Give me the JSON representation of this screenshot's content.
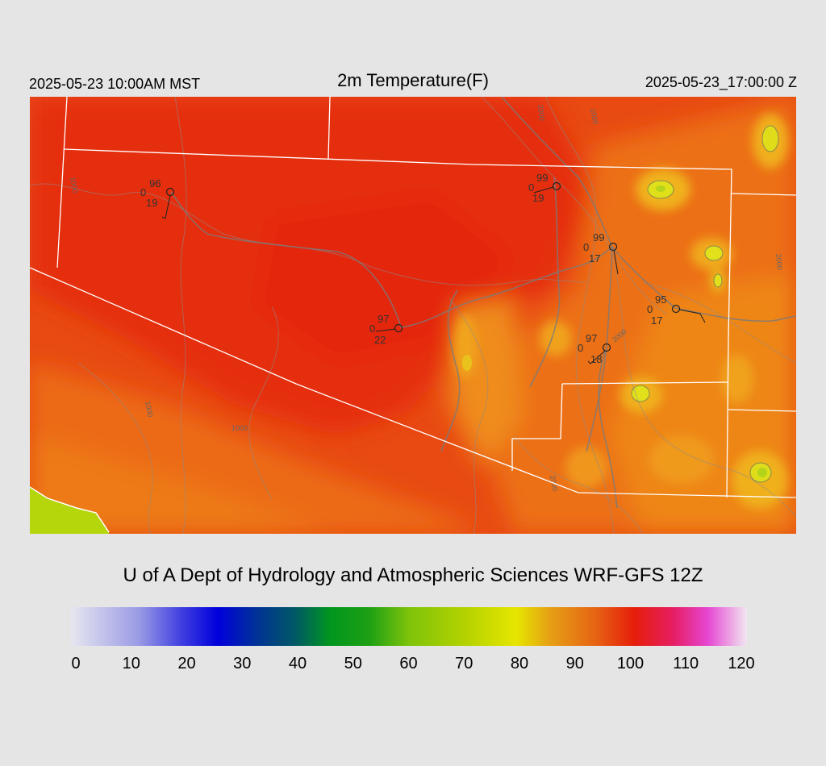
{
  "header": {
    "local_time": "2025-05-23 10:00AM MST",
    "title": "2m Temperature(F)",
    "utc_time": "2025-05-23_17:00:00 Z"
  },
  "credit": "U of A Dept of Hydrology and Atmospheric Sciences WRF-GFS 12Z",
  "colorbar": {
    "min": 0,
    "max": 120,
    "ticks": [
      "0",
      "10",
      "20",
      "30",
      "40",
      "50",
      "60",
      "70",
      "80",
      "90",
      "100",
      "110",
      "120"
    ],
    "stops": [
      {
        "value": 0,
        "color": "#e6e6f0"
      },
      {
        "value": 12,
        "color": "#9b9be6"
      },
      {
        "value": 20,
        "color": "#3b3be0"
      },
      {
        "value": 26,
        "color": "#0000dc"
      },
      {
        "value": 33,
        "color": "#003296"
      },
      {
        "value": 40,
        "color": "#005a64"
      },
      {
        "value": 46,
        "color": "#00961e"
      },
      {
        "value": 53,
        "color": "#1ea014"
      },
      {
        "value": 60,
        "color": "#7ec30a"
      },
      {
        "value": 70,
        "color": "#b4d200"
      },
      {
        "value": 79,
        "color": "#e6e600"
      },
      {
        "value": 85,
        "color": "#e6a014"
      },
      {
        "value": 93,
        "color": "#e66414"
      },
      {
        "value": 100,
        "color": "#e61e0a"
      },
      {
        "value": 107,
        "color": "#e61e64"
      },
      {
        "value": 113,
        "color": "#e646d2"
      },
      {
        "value": 120,
        "color": "#f0e6f0"
      }
    ]
  },
  "contour_labels": [
    "1000",
    "2000",
    "1000",
    "2000",
    "1000",
    "2000",
    "2000",
    "1000"
  ],
  "stations": [
    {
      "temp": "96",
      "wind": "0",
      "dew": "19"
    },
    {
      "temp": "99",
      "wind": "0",
      "dew": "19"
    },
    {
      "temp": "99",
      "wind": "0",
      "dew": "17"
    },
    {
      "temp": "95",
      "wind": "0",
      "dew": "17"
    },
    {
      "temp": "97",
      "wind": "0",
      "dew": "22"
    },
    {
      "temp": "97",
      "wind": "0",
      "dew": "18"
    }
  ]
}
